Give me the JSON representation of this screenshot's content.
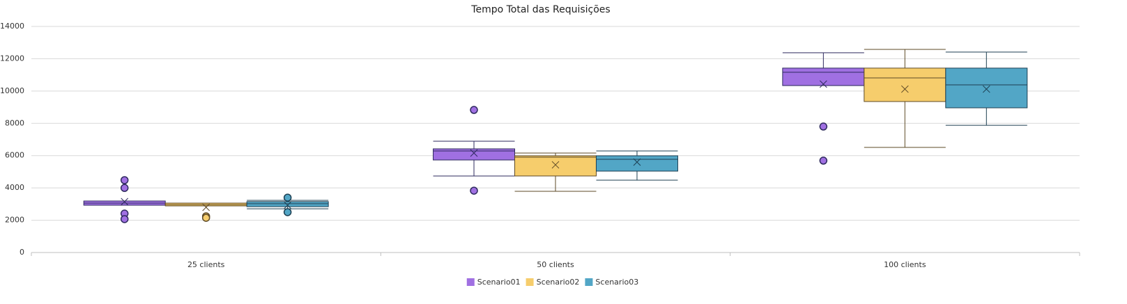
{
  "chart_data": {
    "type": "box",
    "title": "Tempo Total das Requisições",
    "categories": [
      "25 clients",
      "50 clients",
      "100 clients"
    ],
    "ylim": [
      0,
      14000
    ],
    "yticks": [
      0,
      2000,
      4000,
      6000,
      8000,
      10000,
      12000,
      14000
    ],
    "grid": true,
    "legend": "bottom",
    "series": [
      {
        "name": "Scenario01",
        "color": "#a070e2",
        "line_color": "#2e2a5e",
        "min": [
          2930,
          4740,
          10340
        ],
        "q1": [
          2930,
          5730,
          10340
        ],
        "median": [
          3060,
          6290,
          11160
        ],
        "q3": [
          3190,
          6420,
          11420
        ],
        "max": [
          3190,
          6890,
          12370
        ],
        "mean": [
          3150,
          6160,
          10430
        ],
        "outliers": [
          [
            4480,
            4000,
            2410,
            2070
          ],
          [
            8830,
            3830
          ],
          [
            7800,
            5690
          ]
        ]
      },
      {
        "name": "Scenario02",
        "color": "#f6cd6c",
        "line_color": "#5e4a26",
        "min": [
          2890,
          3790,
          6510
        ],
        "q1": [
          2890,
          4740,
          9350
        ],
        "median": [
          2970,
          5900,
          10810
        ],
        "q3": [
          3060,
          5990,
          11420
        ],
        "max": [
          3060,
          6160,
          12580
        ],
        "mean": [
          2800,
          5430,
          10120
        ],
        "outliers": [
          [
            2240,
            2150
          ],
          [],
          []
        ]
      },
      {
        "name": "Scenario03",
        "color": "#52a6c6",
        "line_color": "#1d3f52",
        "min": [
          2710,
          4480,
          7880
        ],
        "q1": [
          2840,
          5040,
          8960
        ],
        "median": [
          3020,
          5770,
          10380
        ],
        "q3": [
          3150,
          5990,
          11420
        ],
        "max": [
          3230,
          6290,
          12410
        ],
        "mean": [
          2930,
          5600,
          10120
        ],
        "outliers": [
          [
            3400,
            2500
          ],
          [],
          []
        ]
      }
    ]
  }
}
